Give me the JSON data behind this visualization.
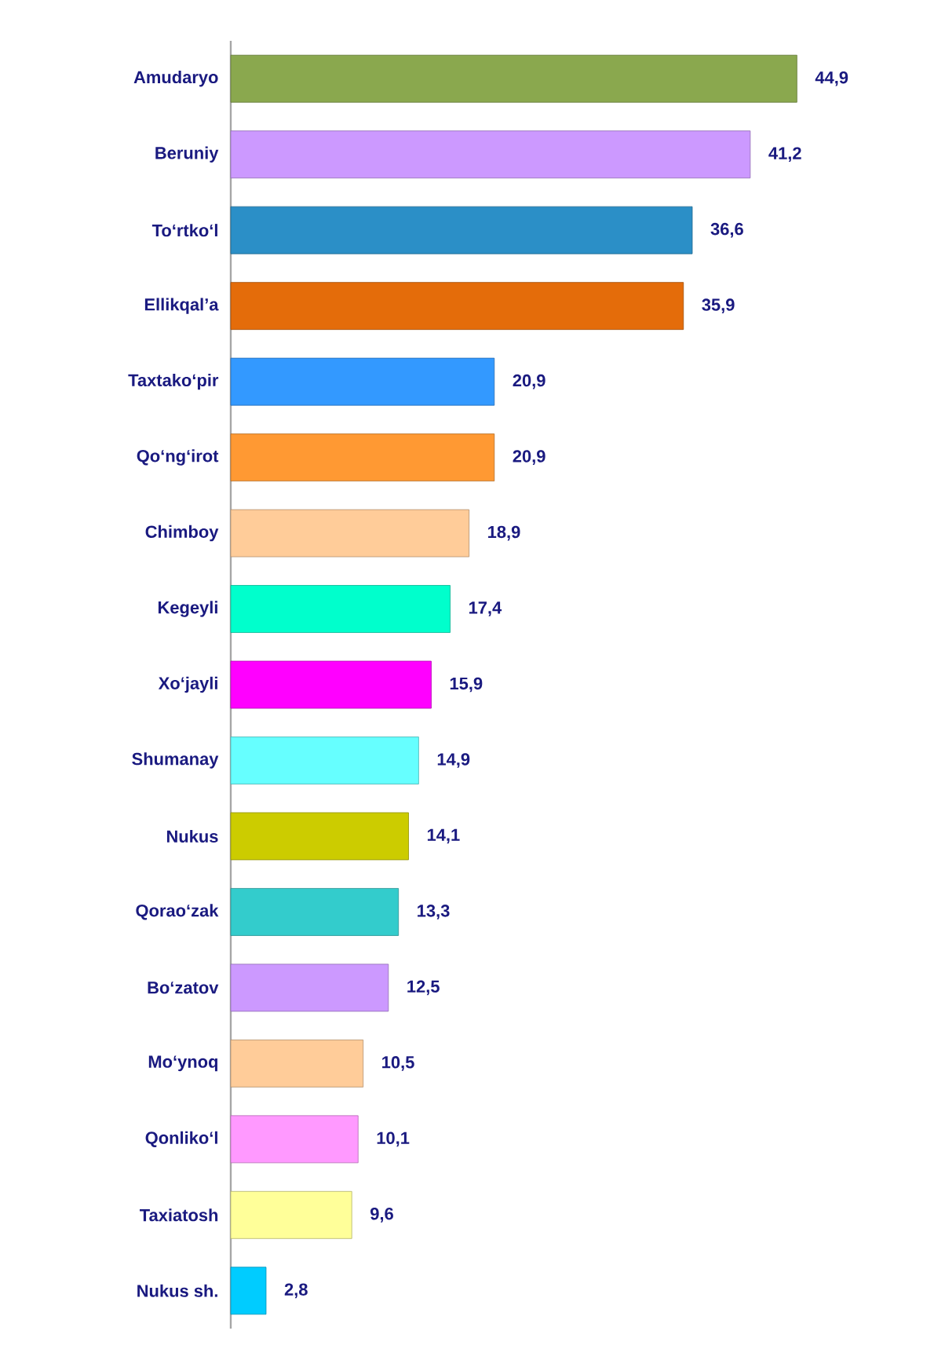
{
  "chart_data": {
    "type": "bar",
    "orientation": "horizontal",
    "categories": [
      "Amudaryo",
      "Beruniy",
      "To‘rtko‘l",
      "Ellikqal’a",
      "Taxtako‘pir",
      "Qo‘ng‘irot",
      "Chimboy",
      "Kegeyli",
      "Xo‘jayli",
      "Shumanay",
      "Nukus",
      "Qorao‘zak",
      "Bo‘zatov",
      "Mo‘ynoq",
      "Qonliko‘l",
      "Taxiatosh",
      "Nukus sh."
    ],
    "values": [
      44.9,
      41.2,
      36.6,
      35.9,
      20.9,
      20.9,
      18.9,
      17.4,
      15.9,
      14.9,
      14.1,
      13.3,
      12.5,
      10.5,
      10.1,
      9.6,
      2.8
    ],
    "value_labels": [
      "44,9",
      "41,2",
      "36,6",
      "35,9",
      "20,9",
      "20,9",
      "18,9",
      "17,4",
      "15,9",
      "14,9",
      "14,1",
      "13,3",
      "12,5",
      "10,5",
      "10,1",
      "9,6",
      "2,8"
    ],
    "colors": [
      "#8aa84e",
      "#cc99ff",
      "#2b8fc7",
      "#e46c0a",
      "#3399ff",
      "#ff9933",
      "#ffcc99",
      "#00ffcc",
      "#ff00ff",
      "#66ffff",
      "#cccc00",
      "#33cccc",
      "#cc99ff",
      "#ffcc99",
      "#ff99ff",
      "#ffff99",
      "#00ccff"
    ],
    "tick_labels": "y"
  }
}
